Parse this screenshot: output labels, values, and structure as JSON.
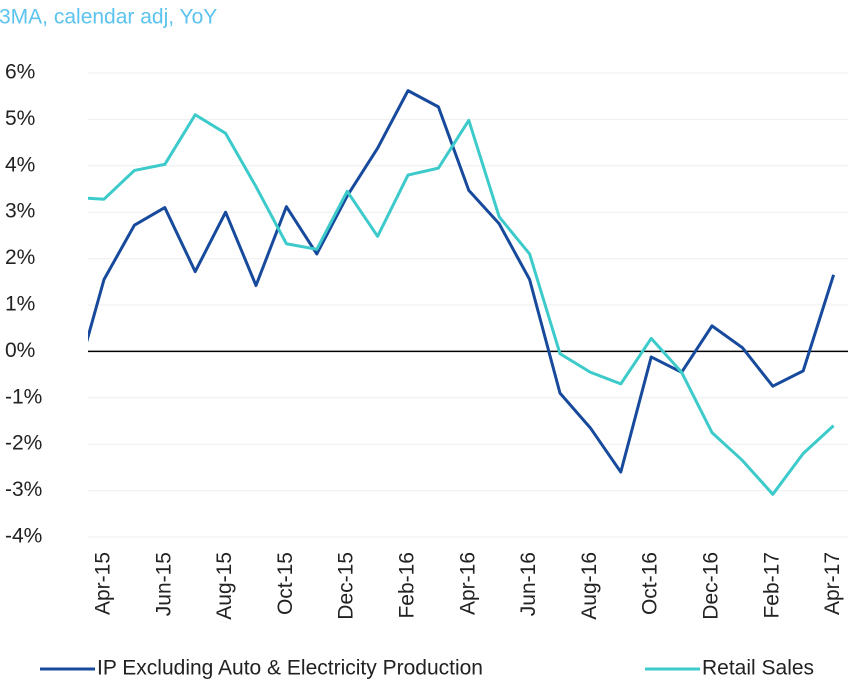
{
  "chart_data": {
    "type": "line",
    "subtitle": "3MA, calendar adj, YoY",
    "categories": [
      null,
      "Apr-15",
      null,
      "Jun-15",
      null,
      "Aug-15",
      null,
      "Oct-15",
      null,
      "Dec-15",
      null,
      "Feb-16",
      null,
      "Apr-16",
      null,
      "Jun-16",
      null,
      "Aug-16",
      null,
      "Oct-16",
      null,
      "Dec-16",
      null,
      "Feb-17",
      null,
      "Apr-17"
    ],
    "series": [
      {
        "name": "IP Excluding Auto & Electricity Production",
        "color": "#174a9c",
        "values": [
          -0.8,
          1.55,
          2.72,
          3.1,
          1.72,
          3.0,
          1.42,
          3.12,
          2.1,
          3.35,
          4.38,
          5.62,
          5.27,
          3.47,
          2.75,
          1.55,
          -0.9,
          -1.65,
          -2.6,
          -0.12,
          -0.45,
          0.55,
          0.08,
          -0.75,
          -0.42,
          1.65
        ]
      },
      {
        "name": "Retail Sales",
        "color": "#3ccaca",
        "values": [
          3.32,
          3.28,
          3.9,
          4.03,
          5.1,
          4.7,
          3.55,
          2.32,
          2.2,
          3.45,
          2.48,
          3.8,
          3.95,
          4.98,
          2.9,
          2.1,
          -0.05,
          -0.45,
          -0.7,
          0.28,
          -0.45,
          -1.75,
          -2.35,
          -3.08,
          -2.2,
          -1.6
        ]
      }
    ],
    "ylim": [
      -4,
      6
    ],
    "yticks": [
      {
        "value": -4,
        "label": "-4%"
      },
      {
        "value": -3,
        "label": "-3%"
      },
      {
        "value": -2,
        "label": "-2%"
      },
      {
        "value": -1,
        "label": "-1%"
      },
      {
        "value": 0,
        "label": "0%"
      },
      {
        "value": 1,
        "label": "1%"
      },
      {
        "value": 2,
        "label": "2%"
      },
      {
        "value": 3,
        "label": "3%"
      },
      {
        "value": 4,
        "label": "4%"
      },
      {
        "value": 5,
        "label": "5%"
      },
      {
        "value": 6,
        "label": "6%"
      }
    ],
    "grid": true
  }
}
